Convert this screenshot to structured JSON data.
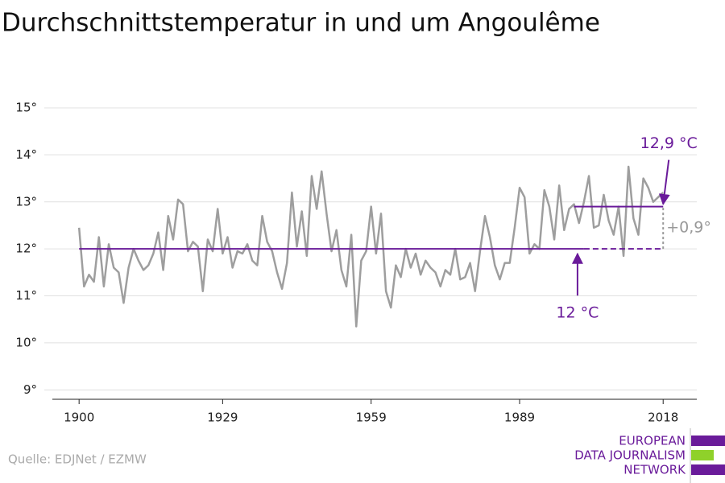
{
  "chart_data": {
    "type": "line",
    "title": "Durchschnittstemperatur in und um Angoulême",
    "source": "Quelle: EDJNet / EZMW",
    "logo": [
      "EUROPEAN",
      "DATA JOURNALISM",
      "NETWORK"
    ],
    "x": [
      1900,
      1901,
      1902,
      1903,
      1904,
      1905,
      1906,
      1907,
      1908,
      1909,
      1910,
      1911,
      1912,
      1913,
      1914,
      1915,
      1916,
      1917,
      1918,
      1919,
      1920,
      1921,
      1922,
      1923,
      1924,
      1925,
      1926,
      1927,
      1928,
      1929,
      1930,
      1931,
      1932,
      1933,
      1934,
      1935,
      1936,
      1937,
      1938,
      1939,
      1940,
      1941,
      1942,
      1943,
      1944,
      1945,
      1946,
      1947,
      1948,
      1949,
      1950,
      1951,
      1952,
      1953,
      1954,
      1955,
      1956,
      1957,
      1958,
      1959,
      1960,
      1961,
      1962,
      1963,
      1964,
      1965,
      1966,
      1967,
      1968,
      1969,
      1970,
      1971,
      1972,
      1973,
      1974,
      1975,
      1976,
      1977,
      1978,
      1979,
      1980,
      1981,
      1982,
      1983,
      1984,
      1985,
      1986,
      1987,
      1988,
      1989,
      1990,
      1991,
      1992,
      1993,
      1994,
      1995,
      1996,
      1997,
      1998,
      1999,
      2000,
      2001,
      2002,
      2003,
      2004,
      2005,
      2006,
      2007,
      2008,
      2009,
      2010,
      2011,
      2012,
      2013,
      2014,
      2015,
      2016,
      2017,
      2018
    ],
    "series": [
      {
        "color": "#9e9e9e",
        "values": [
          12.45,
          11.2,
          11.45,
          11.3,
          12.25,
          11.2,
          12.1,
          11.6,
          11.5,
          10.85,
          11.6,
          12.0,
          11.75,
          11.55,
          11.65,
          11.9,
          12.35,
          11.55,
          12.7,
          12.2,
          13.05,
          12.95,
          11.95,
          12.15,
          12.05,
          11.1,
          12.2,
          11.95,
          12.85,
          11.9,
          12.25,
          11.6,
          11.95,
          11.9,
          12.1,
          11.75,
          11.65,
          12.7,
          12.15,
          11.95,
          11.5,
          11.15,
          11.7,
          13.2,
          12.05,
          12.8,
          11.85,
          13.55,
          12.85,
          13.65,
          12.75,
          11.95,
          12.4,
          11.55,
          11.2,
          12.3,
          10.35,
          11.75,
          11.95,
          12.9,
          11.9,
          12.75,
          11.1,
          10.75,
          11.65,
          11.4,
          12.0,
          11.6,
          11.9,
          11.45,
          11.75,
          11.6,
          11.5,
          11.2,
          11.55,
          11.45,
          12.0,
          11.35,
          11.4,
          11.7,
          11.1,
          11.95,
          12.7,
          12.25,
          11.65,
          11.35,
          11.7,
          11.7,
          12.45,
          13.3,
          13.1,
          11.9,
          12.1,
          12.0,
          13.25,
          12.9,
          12.2,
          13.35,
          12.4,
          12.85,
          12.95,
          12.55,
          13.0,
          13.55,
          12.45,
          12.5,
          13.15,
          12.6,
          12.3,
          12.9,
          11.85,
          13.75,
          12.65,
          12.3,
          13.5,
          13.3,
          13.0,
          13.1,
          13.2
        ]
      }
    ],
    "reference_lines": [
      {
        "value": 12,
        "label": "12 °C",
        "start": 1900,
        "solid_until": 2002,
        "end": 2018,
        "color": "#6a1b9a"
      },
      {
        "value": 12.9,
        "label": "12,9 °C",
        "start": 2000,
        "solid_until": 2018,
        "end": 2018,
        "color": "#6a1b9a"
      }
    ],
    "difference_label": "+0,9°",
    "xlim": [
      1894.6,
      2024.8
    ],
    "xticks": [
      1900,
      1929,
      1959,
      1989,
      2018
    ],
    "ylim": [
      8.8,
      15
    ],
    "yticks": [
      {
        "value": 9,
        "label": "9°"
      },
      {
        "value": 10,
        "label": "10°"
      },
      {
        "value": 11,
        "label": "11°"
      },
      {
        "value": 12,
        "label": "12°"
      },
      {
        "value": 13,
        "label": "13°"
      },
      {
        "value": 14,
        "label": "14°"
      },
      {
        "value": 15,
        "label": "15°"
      }
    ],
    "grid": true
  }
}
